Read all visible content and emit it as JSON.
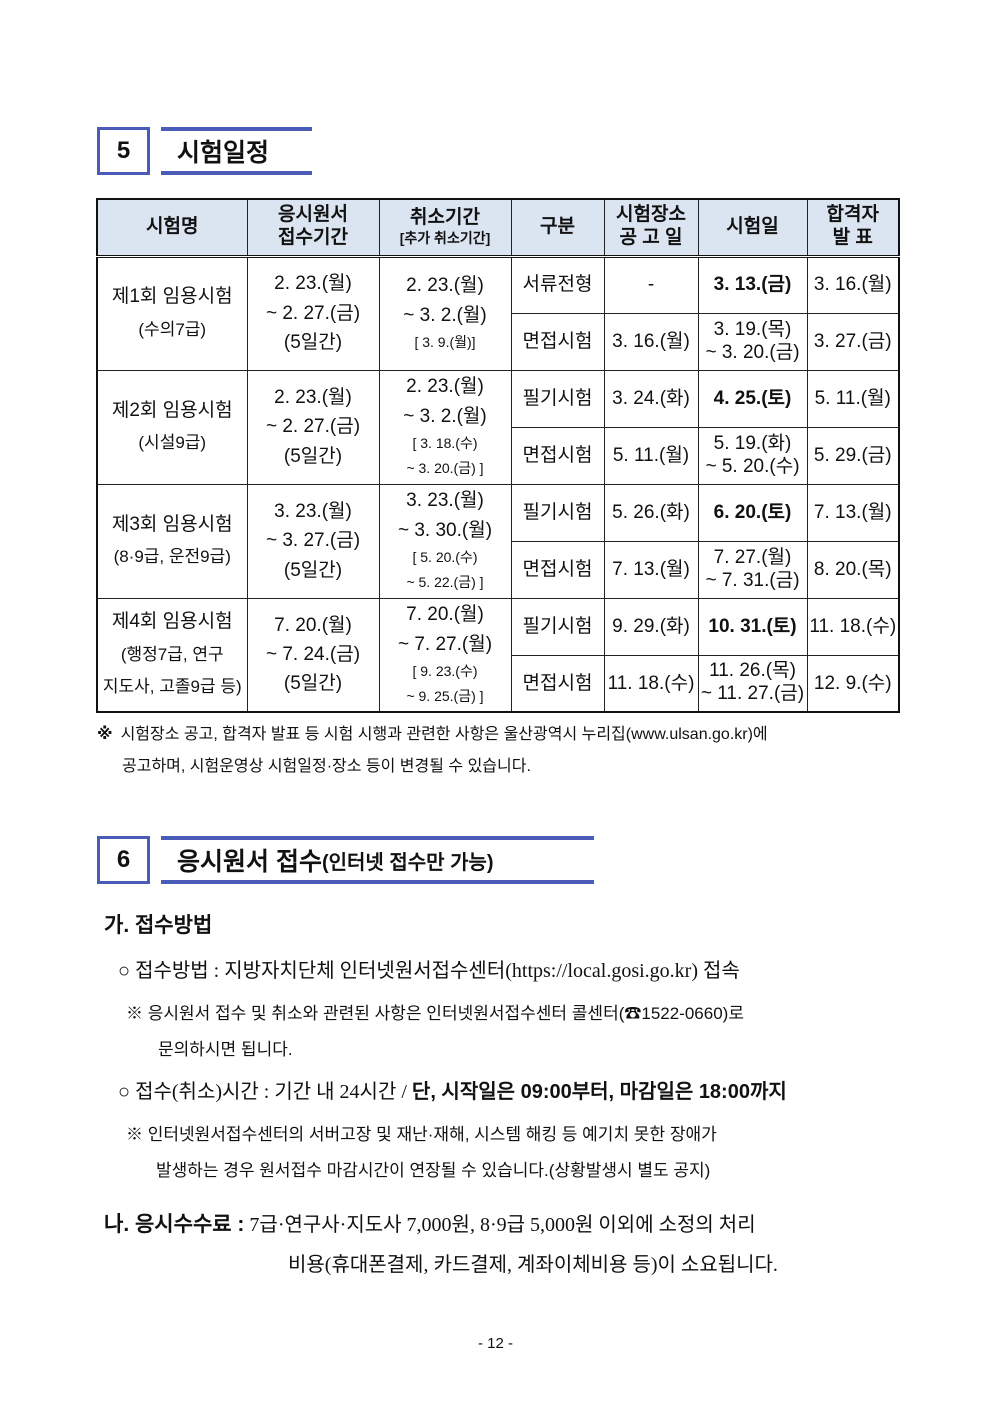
{
  "section5": {
    "number": "5",
    "title": "시험일정"
  },
  "table": {
    "headers": [
      {
        "main": "시험명",
        "sub": ""
      },
      {
        "main": "응시원서\n접수기간",
        "sub": ""
      },
      {
        "main": "취소기간",
        "sub": "[추가 취소기간]"
      },
      {
        "main": "구분",
        "sub": ""
      },
      {
        "main": "시험장소\n공 고 일",
        "sub": ""
      },
      {
        "main": "시험일",
        "sub": ""
      },
      {
        "main": "합격자\n발   표",
        "sub": ""
      }
    ],
    "groups": [
      {
        "name": "제1회 임용시험",
        "grade": "(수의7급)",
        "apply": "2. 23.(월)\n~ 2. 27.(금)\n(5일간)",
        "cancel": "2. 23.(월)\n~ 3. 2.(월)",
        "cancel_extra": "[ 3. 9.(월)]",
        "rows": [
          {
            "type": "서류전형",
            "notice": "-",
            "exam": "3. 13.(금)",
            "exam_bold": true,
            "result": "3. 16.(월)"
          },
          {
            "type": "면접시험",
            "notice": "3. 16.(월)",
            "exam": "3. 19.(목)\n~ 3. 20.(금)",
            "exam_bold": false,
            "result": "3. 27.(금)"
          }
        ]
      },
      {
        "name": "제2회 임용시험",
        "grade": "(시설9급)",
        "apply": "2. 23.(월)\n~ 2. 27.(금)\n(5일간)",
        "cancel": "2. 23.(월)\n~ 3. 2.(월)",
        "cancel_extra": "[ 3. 18.(수)\n~ 3. 20.(금) ]",
        "rows": [
          {
            "type": "필기시험",
            "notice": "3. 24.(화)",
            "exam": "4. 25.(토)",
            "exam_bold": true,
            "result": "5. 11.(월)"
          },
          {
            "type": "면접시험",
            "notice": "5. 11.(월)",
            "exam": "5. 19.(화)\n~ 5. 20.(수)",
            "exam_bold": false,
            "result": "5. 29.(금)"
          }
        ]
      },
      {
        "name": "제3회 임용시험",
        "grade": "(8·9급, 운전9급)",
        "apply": "3. 23.(월)\n~ 3. 27.(금)\n(5일간)",
        "cancel": "3. 23.(월)\n~ 3. 30.(월)",
        "cancel_extra": "[ 5. 20.(수)\n~ 5. 22.(금) ]",
        "rows": [
          {
            "type": "필기시험",
            "notice": "5. 26.(화)",
            "exam": "6. 20.(토)",
            "exam_bold": true,
            "result": "7. 13.(월)"
          },
          {
            "type": "면접시험",
            "notice": "7. 13.(월)",
            "exam": "7. 27.(월)\n~ 7. 31.(금)",
            "exam_bold": false,
            "result": "8. 20.(목)"
          }
        ]
      },
      {
        "name": "제4회 임용시험",
        "grade": "(행정7급, 연구\n지도사, 고졸9급 등)",
        "apply": "7. 20.(월)\n~ 7. 24.(금)\n(5일간)",
        "cancel": "7. 20.(월)\n~ 7. 27.(월)",
        "cancel_extra": "[ 9. 23.(수)\n~ 9. 25.(금) ]",
        "rows": [
          {
            "type": "필기시험",
            "notice": "9. 29.(화)",
            "exam": "10. 31.(토)",
            "exam_bold": true,
            "result": "11. 18.(수)"
          },
          {
            "type": "면접시험",
            "notice": "11. 18.(수)",
            "exam": "11. 26.(목)\n~ 11. 27.(금)",
            "exam_bold": false,
            "result": "12. 9.(수)"
          }
        ]
      }
    ]
  },
  "table_note": {
    "mark": "※",
    "line1": "시험장소 공고, 합격자 발표 등 시험 시행과 관련한 사항은 울산광역시 누리집(www.ulsan.go.kr)에",
    "line2": "공고하며, 시험운영상 시험일정·장소 등이 변경될 수 있습니다."
  },
  "section6": {
    "number": "6",
    "title": "응시원서 접수",
    "title_sub": "(인터넷 접수만 가능)"
  },
  "ga": {
    "heading": "가. 접수방법",
    "method": "○  접수방법 : 지방자치단체 인터넷원서접수센터(https://local.gosi.go.kr) 접속",
    "method_note1": "※  응시원서 접수 및 취소와 관련된 사항은 인터넷원서접수센터 콜센터(☎1522-0660)로",
    "method_note2": "문의하시면 됩니다.",
    "time_prefix": "○  접수(취소)시간 : 기간 내 24시간 / ",
    "time_bold": "단, 시작일은 09:00부터, 마감일은 18:00까지",
    "time_note1": "※  인터넷원서접수센터의 서버고장 및 재난·재해, 시스템 해킹 등 예기치 못한 장애가",
    "time_note2": "발생하는 경우 원서접수 마감시간이 연장될 수 있습니다.(상황발생시 별도 공지)"
  },
  "na": {
    "heading": "나. 응시수수료 :",
    "line1": "7급·연구사·지도사 7,000원, 8·9급 5,000원 이외에 소정의 처리",
    "line2": "비용(휴대폰결제, 카드결제, 계좌이체비용 등)이 소요됩니다."
  },
  "page_number": "- 12 -",
  "colors": {
    "accent": "#4a5cb8",
    "header_bg": "#dbe5f1"
  }
}
